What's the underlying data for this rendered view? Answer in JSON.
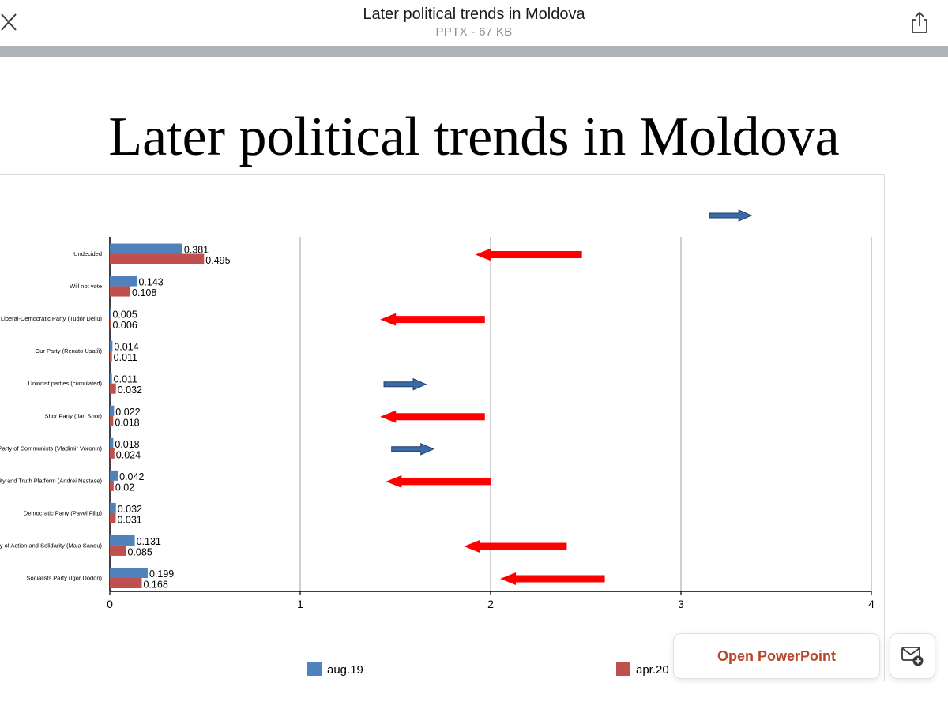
{
  "header": {
    "title": "Later political trends in Moldova",
    "subtitle": "PPTX - 67 KB",
    "close_icon": "close-icon",
    "share_icon": "share-icon"
  },
  "slide": {
    "title": "Later political trends in Moldova"
  },
  "chart_data": {
    "type": "bar",
    "orientation": "horizontal",
    "categories": [
      "Undecided",
      "Will not vote",
      "Liberal-Democratic Party (Tudor Deliu)",
      "Our Party (Renato Usatîi)",
      "Unionist parties (cumulated)",
      "Shor Party (Ilan Shor)",
      "Party of Communists (Vladimir Voronin)",
      "Dignity and Truth Platform (Andrei Nastase)",
      "Democratic Party (Pavel Filip)",
      "Party of Action and Solidarity (Maia Sandu)",
      "Socialists Party (Igor Dodon)"
    ],
    "series": [
      {
        "name": "aug.19",
        "color": "#4f81bd",
        "values": [
          0.381,
          0.143,
          0.005,
          0.014,
          0.011,
          0.022,
          0.018,
          0.042,
          0.032,
          0.131,
          0.199
        ],
        "labels": [
          "0.381",
          "0.143",
          "0.005",
          "0.014",
          "0.011",
          "0.022",
          "0.018",
          "0.042",
          "0.032",
          "0.131",
          "0.199"
        ]
      },
      {
        "name": "apr.20",
        "color": "#c0504d",
        "values": [
          0.495,
          0.108,
          0.006,
          0.011,
          0.032,
          0.018,
          0.024,
          0.02,
          0.031,
          0.085,
          0.168
        ],
        "labels": [
          "0.495",
          "0.108",
          "0.006",
          "0.011",
          "0.032",
          "0.018",
          "0.024",
          "0.02",
          "0.031",
          "0.085",
          "0.168"
        ]
      }
    ],
    "xlim": [
      0,
      4
    ],
    "x_ticks": [
      "0",
      "1",
      "2",
      "3",
      "4"
    ],
    "grid": true,
    "legend_position": "bottom",
    "annotations": [
      {
        "row": "Undecided",
        "direction": "left",
        "color": "#ff0000",
        "from": 2.48,
        "to": 1.92
      },
      {
        "row": "Liberal-Democratic Party (Tudor Deliu)",
        "direction": "left",
        "color": "#ff0000",
        "from": 1.97,
        "to": 1.42
      },
      {
        "row": "Unionist parties (cumulated)",
        "direction": "right",
        "color": "#3c6aa8",
        "from": 1.44,
        "to": 1.66
      },
      {
        "row": "Shor Party (Ilan Shor)",
        "direction": "left",
        "color": "#ff0000",
        "from": 1.97,
        "to": 1.42
      },
      {
        "row": "Party of Communists (Vladimir Voronin)",
        "direction": "right",
        "color": "#3c6aa8",
        "from": 1.48,
        "to": 1.7
      },
      {
        "row": "Dignity and Truth Platform (Andrei Nastase)",
        "direction": "left",
        "color": "#ff0000",
        "from": 2.0,
        "to": 1.45
      },
      {
        "row": "Party of Action and Solidarity (Maia Sandu)",
        "direction": "left",
        "color": "#ff0000",
        "from": 2.4,
        "to": 1.86
      },
      {
        "row": "Socialists Party (Igor Dodon)",
        "direction": "left",
        "color": "#ff0000",
        "from": 2.6,
        "to": 2.05
      }
    ],
    "extra_arrow": {
      "direction": "right",
      "color": "#3c6aa8",
      "from": 3.15,
      "to": 3.37
    }
  },
  "actions": {
    "open_powerpoint": "Open PowerPoint",
    "mail_icon": "mail-add-icon"
  }
}
